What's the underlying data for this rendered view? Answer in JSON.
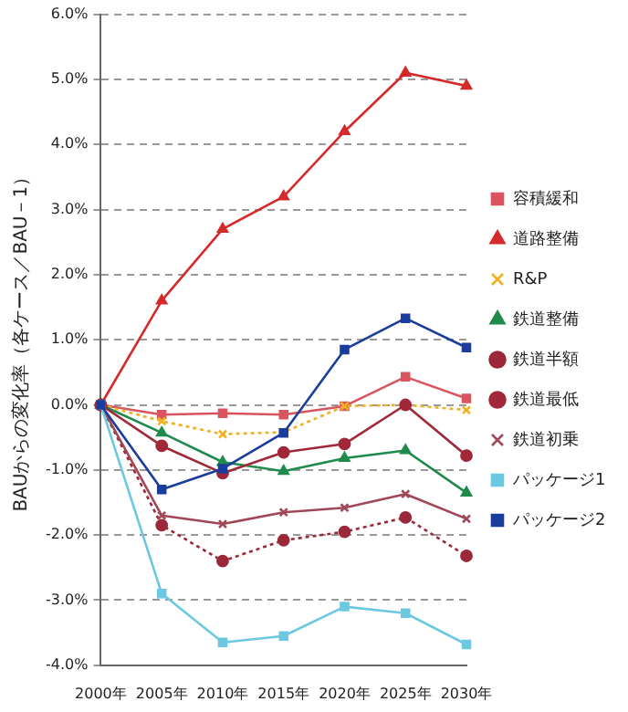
{
  "chart_data": {
    "type": "line",
    "ylabel": "BAUからの変化率（各ケース／BAU－1）",
    "categories": [
      "2000年",
      "2005年",
      "2010年",
      "2015年",
      "2020年",
      "2025年",
      "2030年"
    ],
    "ylim": [
      -4,
      6
    ],
    "yticks": [
      {
        "value": -4,
        "label": "-4.0%"
      },
      {
        "value": -3,
        "label": "-3.0%"
      },
      {
        "value": -2,
        "label": "-2.0%"
      },
      {
        "value": -1,
        "label": "-1.0%"
      },
      {
        "value": 0,
        "label": "0.0%"
      },
      {
        "value": 1,
        "label": "1.0%"
      },
      {
        "value": 2,
        "label": "2.0%"
      },
      {
        "value": 3,
        "label": "3.0%"
      },
      {
        "value": 4,
        "label": "4.0%"
      },
      {
        "value": 5,
        "label": "5.0%"
      },
      {
        "value": 6,
        "label": "6.0%"
      }
    ],
    "grid": "y",
    "legend": "right",
    "series": [
      {
        "name": "容積緩和",
        "color": "#d9545e",
        "marker": "square",
        "line_style": "solid",
        "values": [
          0,
          -0.15,
          -0.13,
          -0.15,
          -0.02,
          0.43,
          0.1
        ]
      },
      {
        "name": "道路整備",
        "color": "#d42a2a",
        "marker": "triangle",
        "line_style": "solid",
        "values": [
          0,
          1.6,
          2.7,
          3.2,
          4.2,
          5.1,
          4.9
        ]
      },
      {
        "name": "R&P",
        "color": "#f0b020",
        "marker": "cross",
        "line_style": "dotted",
        "values": [
          0,
          -0.25,
          -0.45,
          -0.42,
          -0.02,
          0,
          -0.08
        ]
      },
      {
        "name": "鉄道整備",
        "color": "#1f8a4c",
        "marker": "triangle",
        "line_style": "solid",
        "values": [
          0,
          -0.43,
          -0.88,
          -1.02,
          -0.82,
          -0.7,
          -1.35
        ]
      },
      {
        "name": "鉄道半額",
        "color": "#9b2838",
        "marker": "circle",
        "line_style": "dotted",
        "values": [
          0,
          -1.85,
          -2.4,
          -2.08,
          -1.95,
          -1.73,
          -2.32
        ]
      },
      {
        "name": "鉄道最低",
        "color": "#a02838",
        "marker": "circle",
        "line_style": "solid",
        "values": [
          0,
          -0.63,
          -1.05,
          -0.73,
          -0.6,
          0,
          -0.78
        ]
      },
      {
        "name": "鉄道初乗",
        "color": "#a04858",
        "marker": "cross",
        "line_style": "solid",
        "values": [
          0,
          -1.7,
          -1.83,
          -1.65,
          -1.58,
          -1.37,
          -1.75
        ]
      },
      {
        "name": "パッケージ1",
        "color": "#6cc8e0",
        "marker": "square",
        "line_style": "solid",
        "values": [
          0,
          -2.9,
          -3.65,
          -3.55,
          -3.1,
          -3.2,
          -3.68
        ]
      },
      {
        "name": "パッケージ2",
        "color": "#1a3c9c",
        "marker": "square",
        "line_style": "solid",
        "values": [
          0,
          -1.3,
          -0.98,
          -0.43,
          0.85,
          1.33,
          0.88
        ]
      }
    ]
  }
}
